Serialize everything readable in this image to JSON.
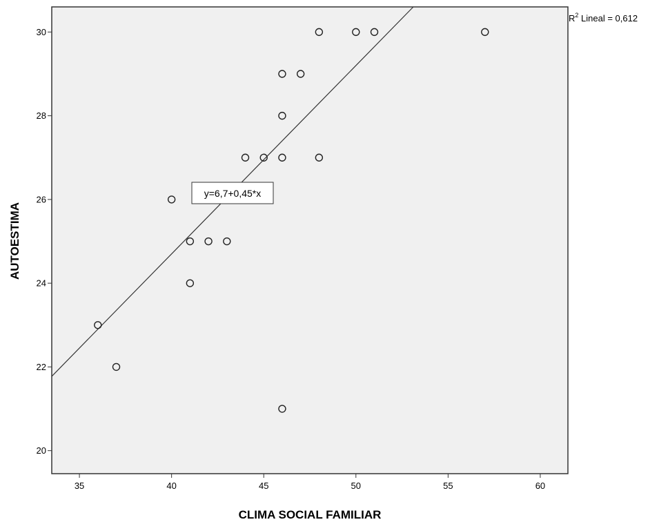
{
  "chart_data": {
    "type": "scatter",
    "xlabel": "CLIMA SOCIAL FAMILIAR",
    "ylabel": "AUTOESTIMA",
    "xlim": [
      33.5,
      61.5
    ],
    "ylim": [
      19.45,
      30.6
    ],
    "xticks": [
      35,
      40,
      45,
      50,
      55,
      60
    ],
    "yticks": [
      20,
      22,
      24,
      26,
      28,
      30
    ],
    "grid": false,
    "points": [
      {
        "x": 36,
        "y": 23
      },
      {
        "x": 37,
        "y": 22
      },
      {
        "x": 40,
        "y": 26
      },
      {
        "x": 41,
        "y": 25
      },
      {
        "x": 41,
        "y": 24
      },
      {
        "x": 42,
        "y": 25
      },
      {
        "x": 43,
        "y": 25
      },
      {
        "x": 44,
        "y": 27
      },
      {
        "x": 45,
        "y": 27
      },
      {
        "x": 46,
        "y": 27
      },
      {
        "x": 46,
        "y": 28
      },
      {
        "x": 46,
        "y": 29
      },
      {
        "x": 46,
        "y": 21
      },
      {
        "x": 47,
        "y": 29
      },
      {
        "x": 48,
        "y": 30
      },
      {
        "x": 48,
        "y": 27
      },
      {
        "x": 50,
        "y": 30
      },
      {
        "x": 51,
        "y": 30
      },
      {
        "x": 57,
        "y": 30
      }
    ],
    "fit_line": {
      "intercept": 6.7,
      "slope": 0.45,
      "equation_label": "y=6,7+0,45*x"
    },
    "r2_annotation": {
      "prefix": "R",
      "superscript": "2",
      "suffix": " Lineal = 0,612"
    },
    "colors": {
      "plot_background": "#f0f0f0",
      "marker_stroke": "#222222",
      "line": "#333333"
    }
  }
}
